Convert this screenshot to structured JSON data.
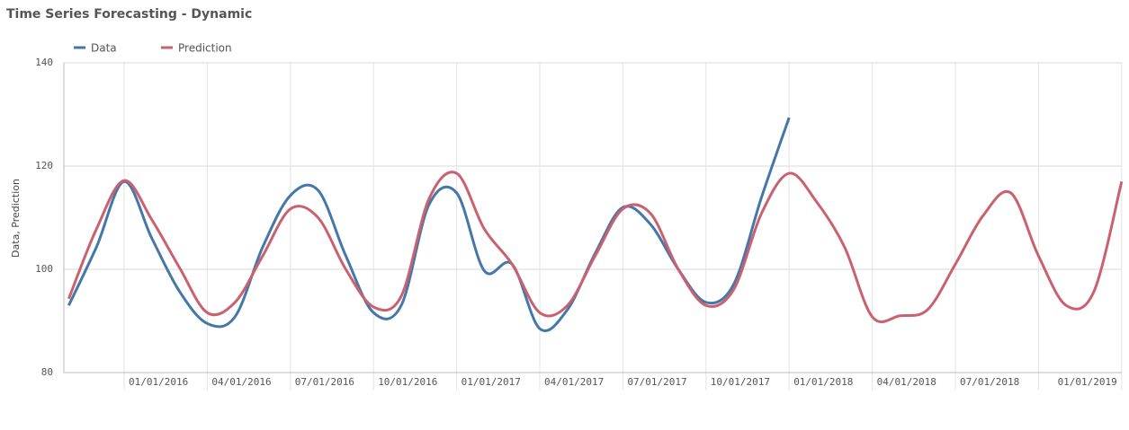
{
  "chart_data": {
    "type": "line",
    "title": "Time Series Forecasting - Dynamic",
    "y_label": "Data, Prediction",
    "categories": [
      null,
      null,
      "01/01/2016",
      null,
      null,
      "04/01/2016",
      null,
      null,
      "07/01/2016",
      null,
      null,
      "10/01/2016",
      null,
      null,
      "01/01/2017",
      null,
      null,
      "04/01/2017",
      null,
      null,
      "07/01/2017",
      null,
      null,
      "10/01/2017",
      null,
      null,
      "01/01/2018",
      null,
      null,
      "04/01/2018",
      null,
      null,
      "07/01/2018",
      null,
      null,
      null,
      null,
      null,
      "01/01/2019"
    ],
    "series": [
      {
        "name": "Data",
        "color": "#4577a8",
        "values": [
          93,
          104.3,
          117,
          106,
          95.7,
          89.5,
          90.8,
          104.3,
          114.3,
          115.3,
          102.6,
          91.6,
          93,
          112.5,
          114.8,
          99.7,
          101,
          88.5,
          92.2,
          103.1,
          112,
          108.7,
          100,
          93.6,
          97.1,
          113.9,
          129.4,
          null,
          null,
          null,
          null,
          null,
          null,
          null,
          null,
          null,
          null,
          null,
          null
        ]
      },
      {
        "name": "Prediction",
        "color": "#c9616f",
        "values": [
          94.3,
          107.8,
          117.2,
          109.6,
          100.3,
          91.6,
          93.6,
          102.6,
          111.7,
          110,
          100,
          92.7,
          94.8,
          113.6,
          118.6,
          107.8,
          101,
          91.6,
          93,
          102.6,
          111.7,
          110.8,
          100,
          93,
          96.1,
          110.8,
          118.6,
          113,
          104.3,
          90.8,
          91,
          92.2,
          101,
          110.4,
          114.8,
          102.6,
          93,
          95.7,
          117
        ]
      }
    ],
    "ylim": [
      80,
      140
    ],
    "yticks": [
      80,
      100,
      120,
      140
    ],
    "grid": true,
    "legend": "top-left"
  }
}
